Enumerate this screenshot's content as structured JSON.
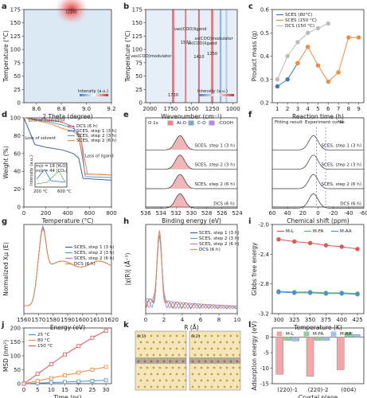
{
  "panel_labels": [
    "a",
    "b",
    "c",
    "d",
    "e",
    "f",
    "g",
    "h",
    "i",
    "j",
    "k",
    "l"
  ],
  "chart_data": [
    {
      "panel": "a",
      "type": "heatmap",
      "xlabel": "2 Theta (degree)",
      "ylabel": "Temperature (°C)",
      "xlim": [
        8.5,
        9.2
      ],
      "ylim": [
        0,
        175
      ],
      "xticks": [
        "8.6",
        "8.8",
        "9.0",
        "9.2"
      ],
      "yticks": [
        "0",
        "25",
        "50",
        "75",
        "100",
        "125",
        "150",
        "175"
      ],
      "annotation": "(220)",
      "colorbar_label": "Intensity (a.u.)",
      "colors": {
        "low": "#dbe9f5",
        "high": "#e03030"
      }
    },
    {
      "panel": "b",
      "type": "heatmap",
      "xlabel": "Wavenumber (cm⁻¹)",
      "ylabel": "Temperature (°C)",
      "xlim": [
        2050,
        950
      ],
      "ylim": [
        0,
        175
      ],
      "xticks": [
        "2000",
        "1750",
        "1500",
        "1250",
        "1000"
      ],
      "yticks": [
        "0",
        "25",
        "50",
        "75",
        "100",
        "125",
        "150",
        "175"
      ],
      "annotations": [
        {
          "text": "νas(COO)modulator",
          "value": "1720"
        },
        {
          "text": "νas(COO)ligand",
          "value": "1570"
        },
        {
          "text": "νs(COO)ligand",
          "value": "1410"
        },
        {
          "text": "νs(COO)modulator",
          "value": "1250"
        }
      ],
      "colorbar_label": "Intensity (a.u.)"
    },
    {
      "panel": "c",
      "type": "line",
      "xlabel": "Reaction time (h)",
      "ylabel": "Product mass (g)",
      "xlim": [
        0.5,
        9.5
      ],
      "ylim": [
        0.2,
        0.6
      ],
      "xticks": [
        1,
        2,
        3,
        4,
        5,
        6,
        7,
        8,
        9
      ],
      "yticks": [
        "0.2",
        "0.3",
        "0.4",
        "0.5",
        "0.6"
      ],
      "series": [
        {
          "name": "SCES (80°C)",
          "x": [
            1,
            2,
            3
          ],
          "y": [
            0.27,
            0.3,
            0.37
          ],
          "color": "#3a78c3"
        },
        {
          "name": "SCES (150 °C)",
          "x": [
            3,
            4,
            5,
            6,
            7,
            8,
            9
          ],
          "y": [
            0.37,
            0.44,
            0.36,
            0.29,
            0.33,
            0.48,
            0.48
          ],
          "color": "#f08a3c"
        },
        {
          "name": "DCS (150 °C)",
          "x": [
            1,
            2,
            3,
            4,
            5,
            6
          ],
          "y": [
            0.3,
            0.4,
            0.46,
            0.5,
            0.52,
            0.54
          ],
          "color": "#bbbbbb"
        }
      ]
    },
    {
      "panel": "d",
      "type": "line",
      "xlabel": "Temperature (°C)",
      "ylabel": "Weight (%)",
      "xlim": [
        0,
        800
      ],
      "ylim": [
        0,
        100
      ],
      "xticks": [
        0,
        200,
        400,
        600,
        800
      ],
      "yticks": [
        0,
        20,
        40,
        60,
        80,
        100
      ],
      "annotations": [
        "Loss of modulator",
        "Loss of solvent",
        "Loss of ligand"
      ],
      "inset": {
        "ylabel": "Intensity (a.u.)",
        "labels": [
          "200 °C",
          "600 °C"
        ],
        "legend": [
          "m/z = 18 (H₂O)",
          "m/z = 44 (CO₂)"
        ]
      },
      "series": [
        {
          "name": "DCS (6 h)",
          "x": [
            0,
            150,
            250,
            350,
            450,
            500,
            560,
            800
          ],
          "y": [
            100,
            98,
            97,
            95,
            90,
            80,
            37,
            36
          ],
          "color": "#e05555"
        },
        {
          "name": "SCES, step 1 (3 h)",
          "x": [
            0,
            100,
            200,
            350,
            450,
            500,
            540,
            800
          ],
          "y": [
            100,
            70,
            67,
            64,
            60,
            55,
            32,
            30
          ],
          "color": "#3b5fb0"
        },
        {
          "name": "SCES, step 2 (3 h)",
          "x": [
            0,
            150,
            250,
            350,
            450,
            520,
            560,
            800
          ],
          "y": [
            100,
            97,
            95,
            92,
            88,
            80,
            34,
            33
          ],
          "color": "#55a0d8"
        },
        {
          "name": "SCES, step 2 (6 h)",
          "x": [
            0,
            150,
            250,
            350,
            450,
            520,
            580,
            800
          ],
          "y": [
            100,
            96,
            93,
            88,
            85,
            78,
            37,
            36
          ],
          "color": "#f08a3c"
        }
      ]
    },
    {
      "panel": "e",
      "type": "line",
      "xlabel": "Binding energy (eV)",
      "ylabel": "",
      "xlim": [
        536,
        524
      ],
      "xticks": [
        536,
        534,
        532,
        530,
        528,
        526,
        524
      ],
      "core_level": "O 1s",
      "legend": [
        {
          "name": "Al-O",
          "color": "#e8868a"
        },
        {
          "name": "C-O",
          "color": "#7fa6d8"
        },
        {
          "name": "-COOH",
          "color": "#b58be0"
        }
      ],
      "series_labels": [
        "SCES, step 1 (3 h)",
        "SCES, step 2 (3 h)",
        "SCES, step 2 (6 h)",
        "DCS (6 h)"
      ]
    },
    {
      "panel": "f",
      "type": "line",
      "xlabel": "Chemical shift (ppm)",
      "ylabel": "",
      "xlim": [
        60,
        -60
      ],
      "xticks": [
        60,
        40,
        20,
        0,
        -20,
        -40,
        -60
      ],
      "legend": [
        "Fitting result",
        "Experiment curve",
        "⁻⁴Al"
      ],
      "series_labels": [
        "SCES, step 1 (3 h)",
        "SCES, step 2 (3 h)",
        "SCES, step 2 (6 h)",
        "DCS (6 h)"
      ]
    },
    {
      "panel": "g",
      "type": "line",
      "xlabel": "Energy (eV)",
      "ylabel": "Normalized Xμ (E)",
      "xlim": [
        1560,
        1620
      ],
      "xticks": [
        1560,
        1570,
        1580,
        1590,
        1600,
        1610,
        1620
      ],
      "series": [
        {
          "name": "SCES, step 1 (3 h)",
          "color": "#3b5fb0"
        },
        {
          "name": "SCES, step 2 (3 h)",
          "color": "#55a0d8"
        },
        {
          "name": "SCES, step 2 (6 h)",
          "color": "#d070c0"
        },
        {
          "name": "DCS (6 h)",
          "color": "#f08a3c"
        }
      ]
    },
    {
      "panel": "h",
      "type": "line",
      "xlabel": "R (Å)",
      "ylabel": "|χ(R)| (Å⁻³)",
      "xlim": [
        0,
        10
      ],
      "xticks": [
        0,
        2,
        4,
        6,
        8,
        10
      ],
      "series": [
        {
          "name": "SCES, step 1 (3 h)",
          "color": "#3b5fb0"
        },
        {
          "name": "SCES, step 2 (3 h)",
          "color": "#55a0d8"
        },
        {
          "name": "SCES, step 2 (6 h)",
          "color": "#d070c0"
        },
        {
          "name": "DCS (6 h)",
          "color": "#f08a3c"
        }
      ]
    },
    {
      "panel": "i",
      "type": "line",
      "xlabel": "Temperature (K)",
      "ylabel": "Gibbs free energy",
      "xlim": [
        290,
        435
      ],
      "ylim": [
        -3.2,
        -2.0
      ],
      "xticks": [
        300,
        325,
        350,
        375,
        400,
        425
      ],
      "yticks": [
        "-2.0",
        "-2.4",
        "-2.8",
        "-3.2"
      ],
      "series": [
        {
          "name": "M-L",
          "x": [
            300,
            325,
            350,
            375,
            400,
            425
          ],
          "y": [
            -2.2,
            -2.23,
            -2.25,
            -2.28,
            -2.3,
            -2.33
          ],
          "color": "#e05555"
        },
        {
          "name": "M-FA",
          "x": [
            300,
            325,
            350,
            375,
            400,
            425
          ],
          "y": [
            -2.9,
            -2.91,
            -2.91,
            -2.92,
            -2.92,
            -2.93
          ],
          "color": "#5cb85c"
        },
        {
          "name": "M-AA",
          "x": [
            300,
            325,
            350,
            375,
            400,
            425
          ],
          "y": [
            -2.91,
            -2.92,
            -2.92,
            -2.93,
            -2.93,
            -2.94
          ],
          "color": "#4a90d9"
        }
      ]
    },
    {
      "panel": "j",
      "type": "line",
      "xlabel": "Time (ns)",
      "ylabel": "MSD (nm²)",
      "xlim": [
        0,
        32
      ],
      "ylim": [
        0,
        200
      ],
      "xticks": [
        0,
        5,
        10,
        15,
        20,
        25,
        30
      ],
      "yticks": [
        0,
        50,
        100,
        150,
        200
      ],
      "series": [
        {
          "name": "25 °C",
          "x": [
            0,
            5,
            10,
            15,
            20,
            25,
            30
          ],
          "y": [
            0,
            2,
            4,
            6,
            8,
            10,
            12
          ],
          "color": "#4a90d9"
        },
        {
          "name": "80 °C",
          "x": [
            0,
            5,
            10,
            15,
            20,
            25,
            30
          ],
          "y": [
            0,
            10,
            20,
            30,
            40,
            50,
            60
          ],
          "color": "#f08a3c"
        },
        {
          "name": "150 °C",
          "x": [
            0,
            5,
            10,
            15,
            20,
            25,
            30
          ],
          "y": [
            0,
            35,
            70,
            105,
            135,
            165,
            190
          ],
          "color": "#e05555"
        }
      ]
    },
    {
      "panel": "k",
      "type": "image",
      "sub_labels": [
        "(k1)",
        "(k2)"
      ]
    },
    {
      "panel": "l",
      "type": "bar",
      "xlabel": "Crystal plane",
      "ylabel": "Adsorption energy (eV)",
      "categories": [
        "(220)-1",
        "(220)-2",
        "(004)"
      ],
      "ylim": [
        -15,
        3
      ],
      "yticks": [
        0,
        -5,
        -10,
        -15
      ],
      "series": [
        {
          "name": "M-L",
          "values": [
            -12.0,
            -12.6,
            -10.5
          ],
          "color": "#f4a6a6"
        },
        {
          "name": "M-FA",
          "values": [
            -1.0,
            -1.0,
            1.6
          ],
          "color": "#8fd19e"
        },
        {
          "name": "M-AA",
          "values": [
            -1.2,
            -1.0,
            0.9
          ],
          "color": "#9cc0e8"
        }
      ]
    }
  ]
}
